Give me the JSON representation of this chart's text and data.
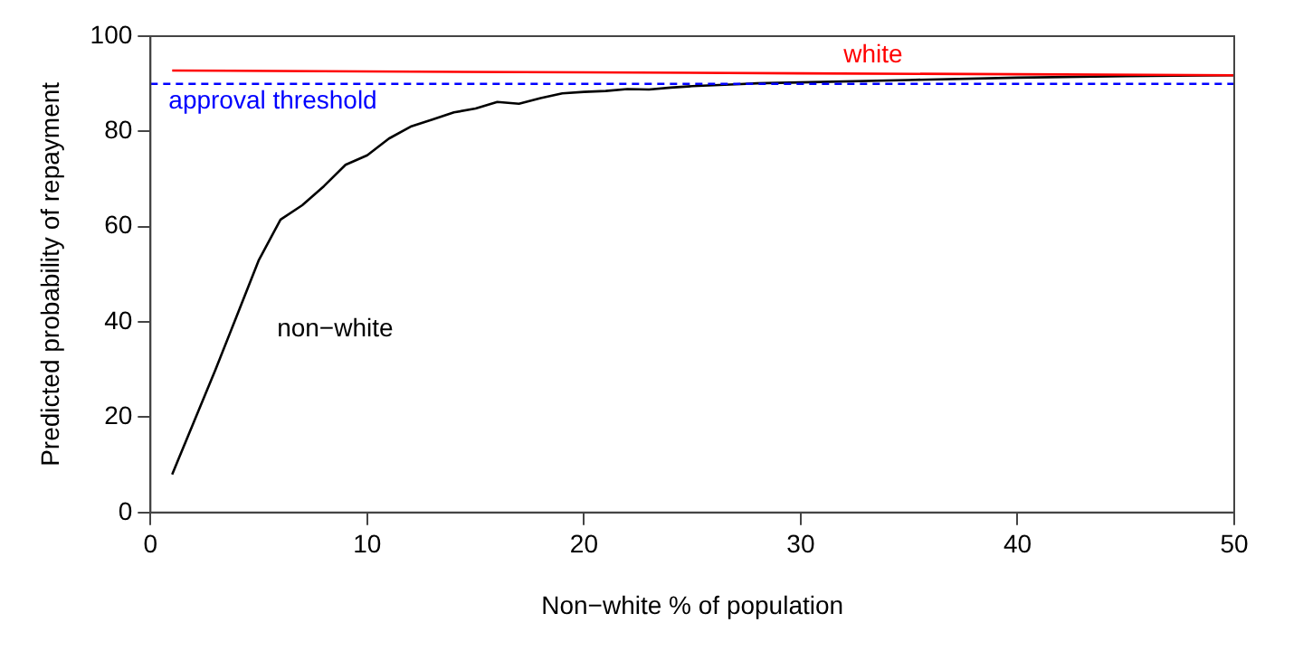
{
  "chart_data": {
    "type": "line",
    "xlabel": "Non−white % of population",
    "ylabel": "Predicted probability of repayment",
    "xlim": [
      0,
      50
    ],
    "ylim": [
      0,
      100
    ],
    "xticks": [
      0,
      10,
      20,
      30,
      40,
      50
    ],
    "yticks": [
      0,
      20,
      40,
      60,
      80,
      100
    ],
    "grid": false,
    "legend": false,
    "marker": "none",
    "line_style": "solid",
    "series": [
      {
        "name": "white",
        "color": "#ff0000",
        "x": [
          1,
          10,
          20,
          30,
          40,
          50
        ],
        "values": [
          92.8,
          92.6,
          92.4,
          92.2,
          92.0,
          91.8
        ]
      },
      {
        "name": "non−white",
        "color": "#000000",
        "x": [
          1,
          2,
          3,
          4,
          5,
          6,
          7,
          8,
          9,
          10,
          11,
          12,
          13,
          14,
          15,
          16,
          17,
          18,
          19,
          20,
          21,
          22,
          23,
          24,
          25,
          26,
          27,
          28,
          30,
          35,
          40,
          45,
          50
        ],
        "values": [
          8,
          19,
          30,
          41.5,
          53,
          61.5,
          64.5,
          68.5,
          73,
          75,
          78.5,
          81,
          82.5,
          84,
          84.8,
          86.2,
          85.8,
          87,
          88,
          88.3,
          88.5,
          88.9,
          88.8,
          89.2,
          89.5,
          89.7,
          89.9,
          90.1,
          90.3,
          90.8,
          91.3,
          91.6,
          91.8
        ]
      }
    ],
    "ref_lines": [
      {
        "axis": "y",
        "value": 90,
        "label": "approval threshold",
        "color": "#0000ff",
        "line_style": "dashed"
      }
    ]
  }
}
